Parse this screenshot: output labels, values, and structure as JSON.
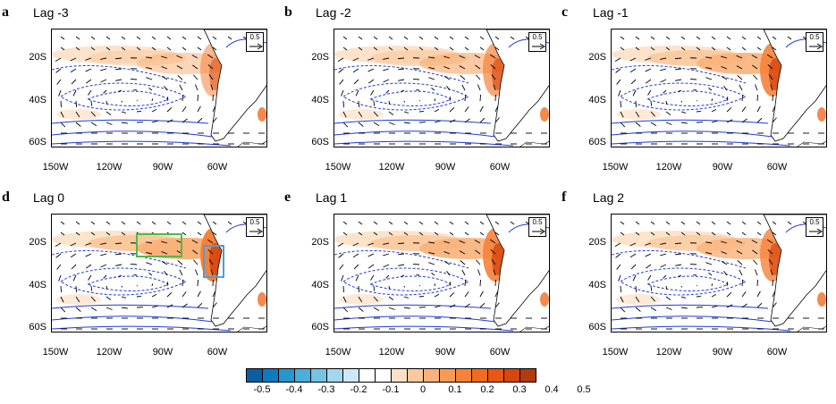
{
  "panels": [
    {
      "letter": "a",
      "title": "Lag -3",
      "ref_vector": "0.5",
      "intensity": 0.55,
      "boxes": false
    },
    {
      "letter": "b",
      "title": "Lag -2",
      "ref_vector": "0.5",
      "intensity": 0.7,
      "boxes": false
    },
    {
      "letter": "c",
      "title": "Lag -1",
      "ref_vector": "0.5",
      "intensity": 0.9,
      "boxes": false
    },
    {
      "letter": "d",
      "title": "Lag 0",
      "ref_vector": "0.5",
      "intensity": 1.0,
      "boxes": true
    },
    {
      "letter": "e",
      "title": "Lag 1",
      "ref_vector": "0.5",
      "intensity": 0.9,
      "boxes": false
    },
    {
      "letter": "f",
      "title": "Lag 2",
      "ref_vector": "0.5",
      "intensity": 0.8,
      "boxes": false
    }
  ],
  "axes": {
    "lat_ticks": [
      "20S",
      "40S",
      "60S"
    ],
    "lon_ticks": [
      "150W",
      "120W",
      "90W",
      "60W"
    ]
  },
  "colorbar": {
    "labels": [
      "-0.5",
      "-0.4",
      "-0.3",
      "-0.2",
      "-0.1",
      "0",
      "0.1",
      "0.2",
      "0.3",
      "0.4",
      "0.5"
    ],
    "colors": [
      "#0a5fa3",
      "#0d7bc0",
      "#2596cf",
      "#49afdb",
      "#75c4e4",
      "#a2d8ee",
      "#cde9f5",
      "#ffffff",
      "#ffffff",
      "#fde0c5",
      "#fbc99d",
      "#f9b27a",
      "#f79a55",
      "#f6823a",
      "#f26b22",
      "#ea5712",
      "#d84610",
      "#b33a0c"
    ]
  },
  "chart_data": {
    "type": "heatmap",
    "panels": [
      "Lag -3",
      "Lag -2",
      "Lag -1",
      "Lag 0",
      "Lag 1",
      "Lag 2"
    ],
    "lat_range": [
      "5S",
      "60S"
    ],
    "lon_range": [
      "150W",
      "50W"
    ],
    "legend": "bottom",
    "colorbar_range": [
      -0.5,
      0.5
    ],
    "reference_vector": 0.5
  }
}
